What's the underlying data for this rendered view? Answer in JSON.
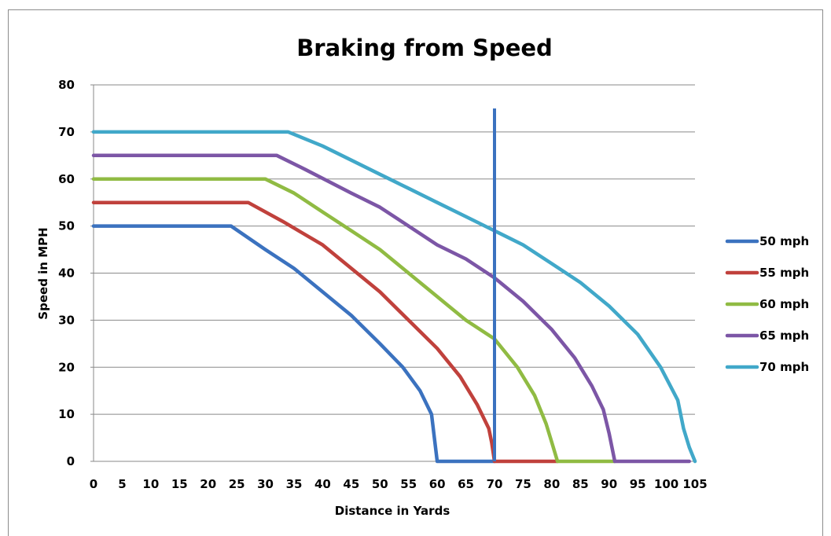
{
  "chart_data": {
    "type": "line",
    "title": "Braking from Speed",
    "xlabel": "Distance in Yards",
    "ylabel": "Speed in MPH",
    "xlim": [
      0,
      105
    ],
    "ylim": [
      0,
      80
    ],
    "x_ticks": [
      "0",
      "5",
      "10",
      "15",
      "20",
      "25",
      "30",
      "35",
      "40",
      "45",
      "50",
      "55",
      "60",
      "65",
      "70",
      "75",
      "80",
      "85",
      "90",
      "95",
      "100",
      "105"
    ],
    "y_ticks": [
      "0",
      "10",
      "20",
      "30",
      "40",
      "50",
      "60",
      "70",
      "80"
    ],
    "grid": "horizontal",
    "legend_position": "right",
    "series": [
      {
        "name": "50 mph",
        "color": "#3b72bf",
        "points": [
          [
            0,
            50
          ],
          [
            24,
            50
          ],
          [
            30,
            45
          ],
          [
            35,
            41
          ],
          [
            40,
            36
          ],
          [
            45,
            31
          ],
          [
            50,
            25
          ],
          [
            54,
            20
          ],
          [
            57,
            15
          ],
          [
            59,
            10
          ],
          [
            59.5,
            5
          ],
          [
            60,
            0
          ],
          [
            70,
            0
          ]
        ]
      },
      {
        "name": "55 mph",
        "color": "#c0413c",
        "points": [
          [
            0,
            55
          ],
          [
            27,
            55
          ],
          [
            33,
            51
          ],
          [
            40,
            46
          ],
          [
            45,
            41
          ],
          [
            50,
            36
          ],
          [
            55,
            30
          ],
          [
            60,
            24
          ],
          [
            64,
            18
          ],
          [
            67,
            12
          ],
          [
            69,
            7
          ],
          [
            69.5,
            4
          ],
          [
            70,
            0
          ],
          [
            81,
            0
          ]
        ]
      },
      {
        "name": "60 mph",
        "color": "#90bb43",
        "points": [
          [
            0,
            60
          ],
          [
            30,
            60
          ],
          [
            35,
            57
          ],
          [
            40,
            53
          ],
          [
            45,
            49
          ],
          [
            50,
            45
          ],
          [
            55,
            40
          ],
          [
            60,
            35
          ],
          [
            65,
            30
          ],
          [
            70,
            26
          ],
          [
            74,
            20
          ],
          [
            77,
            14
          ],
          [
            79,
            8
          ],
          [
            80,
            4
          ],
          [
            81,
            0
          ],
          [
            91,
            0
          ]
        ]
      },
      {
        "name": "65 mph",
        "color": "#7c56a6",
        "points": [
          [
            0,
            65
          ],
          [
            32,
            65
          ],
          [
            37,
            62
          ],
          [
            45,
            57
          ],
          [
            50,
            54
          ],
          [
            55,
            50
          ],
          [
            60,
            46
          ],
          [
            65,
            43
          ],
          [
            70,
            39
          ],
          [
            75,
            34
          ],
          [
            80,
            28
          ],
          [
            84,
            22
          ],
          [
            87,
            16
          ],
          [
            89,
            11
          ],
          [
            90,
            6
          ],
          [
            91,
            0
          ],
          [
            104,
            0
          ]
        ]
      },
      {
        "name": "70 mph",
        "color": "#41a8c9",
        "points": [
          [
            0,
            70
          ],
          [
            34,
            70
          ],
          [
            40,
            67
          ],
          [
            45,
            64
          ],
          [
            50,
            61
          ],
          [
            55,
            58
          ],
          [
            60,
            55
          ],
          [
            65,
            52
          ],
          [
            70,
            49
          ],
          [
            75,
            46
          ],
          [
            80,
            42
          ],
          [
            85,
            38
          ],
          [
            90,
            33
          ],
          [
            95,
            27
          ],
          [
            99,
            20
          ],
          [
            102,
            13
          ],
          [
            103,
            7
          ],
          [
            104,
            3
          ],
          [
            105,
            0
          ]
        ]
      }
    ],
    "annotations": [
      {
        "type": "vertical_line",
        "x": 70,
        "y_top": 75,
        "color": "#3b72bf"
      }
    ]
  }
}
